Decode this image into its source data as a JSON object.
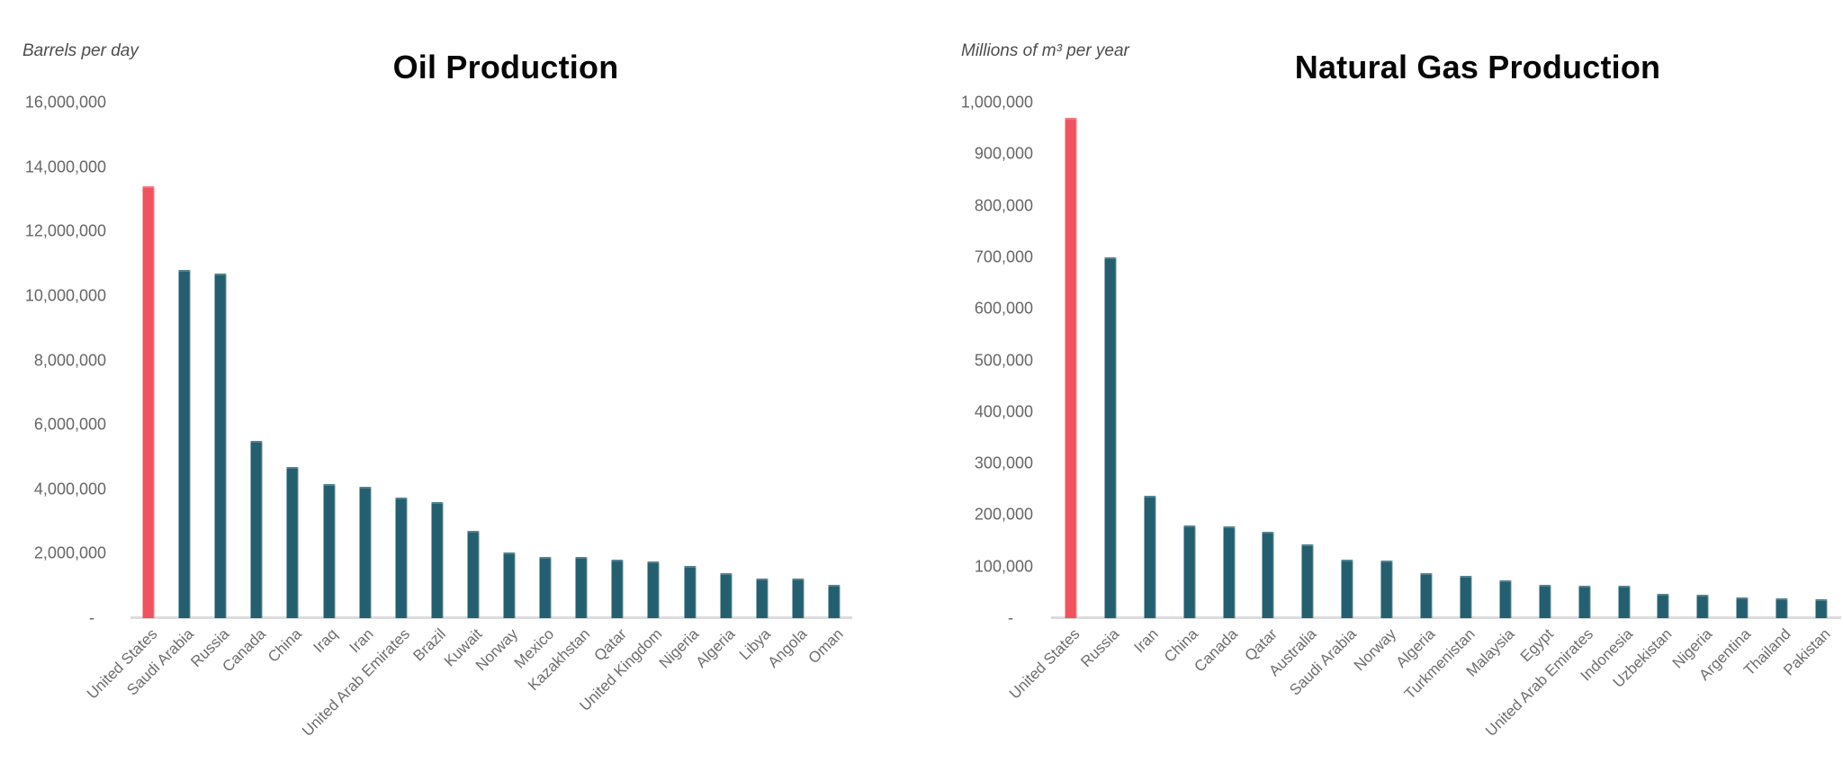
{
  "colors": {
    "highlight": "#F0535D",
    "bar": "#235F6F",
    "baseline": "#DCDCDE",
    "title_text": "#060606",
    "tick_text": "#666666"
  },
  "chart_data": [
    {
      "type": "bar",
      "title": "Oil Production",
      "axis_caption": "Barrels per day",
      "ylabel": "Barrels per day",
      "xlabel": "",
      "zero_tick_label": "-",
      "ylim": [
        0,
        16000000
      ],
      "yticks": [
        16000000,
        14000000,
        12000000,
        10000000,
        8000000,
        6000000,
        4000000,
        2000000
      ],
      "grid": false,
      "legend": "none",
      "xlabel_rotation_deg": -45,
      "highlight_index": 0,
      "highlight_color": "#F0535D",
      "bar_color": "#235F6F",
      "categories": [
        "United States",
        "Saudi Arabia",
        "Russia",
        "Canada",
        "China",
        "Iraq",
        "Iran",
        "United Arab Emirates",
        "Brazil",
        "Kuwait",
        "Norway",
        "Mexico",
        "Kazakhstan",
        "Qatar",
        "United Kingdom",
        "Nigeria",
        "Algeria",
        "Libya",
        "Angola",
        "Oman"
      ],
      "values": [
        13400000,
        10800000,
        10700000,
        5500000,
        4700000,
        4150000,
        4080000,
        3750000,
        3610000,
        2710000,
        2030000,
        1890000,
        1890000,
        1810000,
        1770000,
        1610000,
        1400000,
        1230000,
        1230000,
        1030000
      ]
    },
    {
      "type": "bar",
      "title": "Natural Gas Production",
      "axis_caption": "Millions of m³ per year",
      "ylabel": "Millions of m³ per year",
      "xlabel": "",
      "zero_tick_label": "-",
      "ylim": [
        0,
        1000000
      ],
      "yticks": [
        1000000,
        900000,
        800000,
        700000,
        600000,
        500000,
        400000,
        300000,
        200000,
        100000
      ],
      "grid": false,
      "legend": "none",
      "xlabel_rotation_deg": -45,
      "highlight_index": 0,
      "highlight_color": "#F0535D",
      "bar_color": "#235F6F",
      "categories": [
        "United States",
        "Russia",
        "Iran",
        "China",
        "Canada",
        "Qatar",
        "Australia",
        "Saudi Arabia",
        "Norway",
        "Algeria",
        "Turkmenistan",
        "Malaysia",
        "Egypt",
        "United Arab Emirates",
        "Indonesia",
        "Uzbekistan",
        "Nigeria",
        "Argentina",
        "Thailand",
        "Pakistan"
      ],
      "values": [
        970000,
        700000,
        238000,
        180000,
        178000,
        167000,
        143000,
        114000,
        112000,
        88000,
        82000,
        74000,
        64000,
        62000,
        62000,
        48000,
        46000,
        41000,
        38000,
        37000
      ]
    }
  ]
}
